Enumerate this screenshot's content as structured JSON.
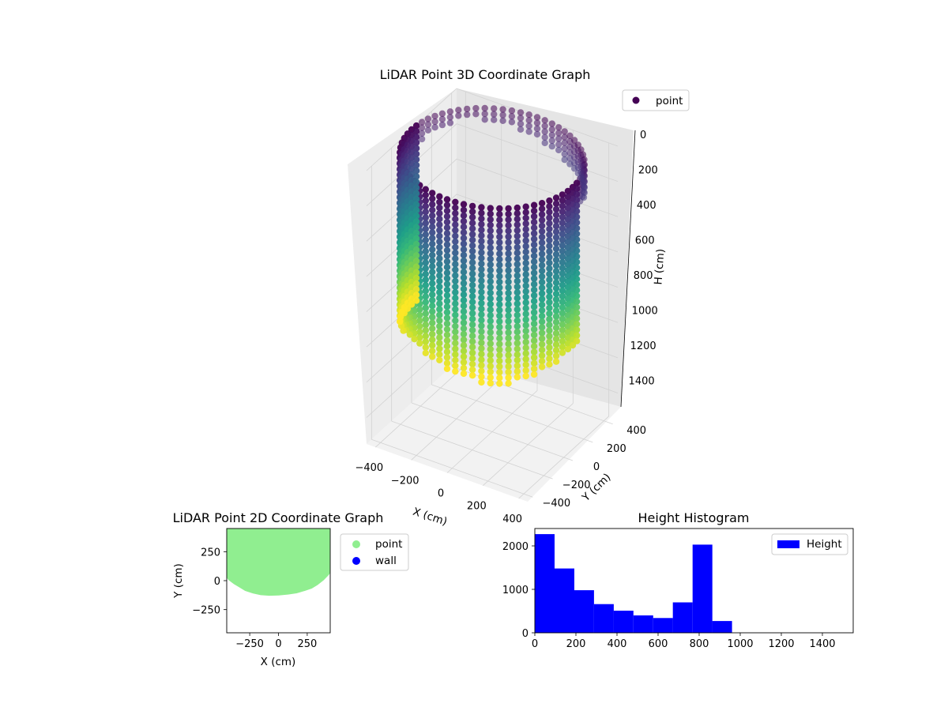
{
  "figure": {
    "background": "#ffffff"
  },
  "chart_data": [
    {
      "type": "scatter3d",
      "title": "LiDAR Point 3D Coordinate Graph",
      "xlabel": "X (cm)",
      "ylabel": "Y (cm)",
      "zlabel": "H (cm)",
      "xticks": [
        "−400",
        "−200",
        "0",
        "200",
        "400"
      ],
      "yticks": [
        "400",
        "200",
        "0",
        "−200",
        "−400"
      ],
      "zticks": [
        "0",
        "200",
        "400",
        "600",
        "800",
        "1000",
        "1200",
        "1400"
      ],
      "xlim": [
        -450,
        450
      ],
      "ylim": [
        -450,
        450
      ],
      "zlim": [
        1550,
        0
      ],
      "z_inverted": true,
      "colormap": "viridis",
      "legend": [
        {
          "label": "point",
          "color": "#440154"
        }
      ],
      "legend_position": "top-right",
      "shape": {
        "ring_radius": 450,
        "h_min": 0,
        "h_max": 960
      }
    },
    {
      "type": "scatter",
      "title": "LiDAR Point 2D Coordinate Graph",
      "xlabel": "X (cm)",
      "ylabel": "Y (cm)",
      "xticks": [
        "−250",
        "0",
        "250"
      ],
      "yticks": [
        "250",
        "0",
        "−250"
      ],
      "xlim": [
        -450,
        450
      ],
      "ylim": [
        -450,
        450
      ],
      "series": [
        {
          "name": "point",
          "color": "#90ee90"
        },
        {
          "name": "wall",
          "color": "#0000ff"
        }
      ],
      "legend_position": "outside-right",
      "region": {
        "x": [
          -450,
          -420,
          -380,
          -330,
          -280,
          -220,
          -150,
          -80,
          0,
          80,
          150,
          220,
          280,
          330,
          380,
          420,
          450
        ],
        "y_lower": [
          60,
          20,
          -10,
          -40,
          -70,
          -90,
          -105,
          -110,
          -108,
          -100,
          -90,
          -70,
          -50,
          -20,
          20,
          60,
          100
        ],
        "y_upper": 450
      }
    },
    {
      "type": "histogram",
      "title": "Height Histogram",
      "xlabel": "",
      "ylabel": "",
      "xticks": [
        "0",
        "200",
        "400",
        "600",
        "800",
        "1000",
        "1200",
        "1400"
      ],
      "yticks": [
        "0",
        "1000",
        "2000"
      ],
      "xlim": [
        0,
        1550
      ],
      "ylim": [
        0,
        2400
      ],
      "bin_edges": [
        0,
        96,
        192,
        288,
        384,
        480,
        576,
        672,
        768,
        864,
        960
      ],
      "values": [
        2270,
        1480,
        980,
        660,
        510,
        400,
        340,
        700,
        2030,
        270
      ],
      "color": "#0000ff",
      "legend": [
        {
          "label": "Height",
          "color": "#0000ff"
        }
      ],
      "legend_position": "top-right"
    }
  ]
}
